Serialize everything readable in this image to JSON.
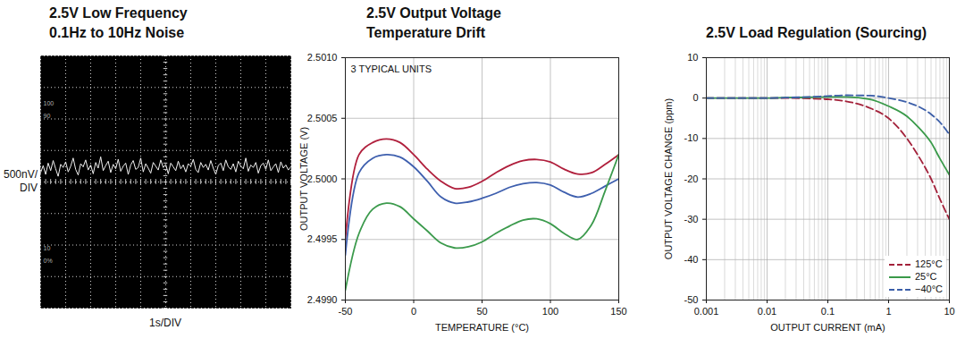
{
  "chart_data": [
    {
      "type": "line",
      "title": "2.5V Low Frequency\n0.1Hz to 10Hz Noise",
      "xlabel": "1s/DIV",
      "ylabel": "500nV/\nDIV",
      "annotations": [
        "100",
        "90",
        "10",
        "0%"
      ],
      "tick_labels": false,
      "grid": true,
      "xlim": [
        0,
        10
      ],
      "ylim": [
        -2000,
        2000
      ],
      "xticks": [
        0,
        1,
        2,
        3,
        4,
        5,
        6,
        7,
        8,
        9,
        10
      ],
      "yticks": [
        -2000,
        -1500,
        -1000,
        -500,
        0,
        500,
        1000,
        1500,
        2000
      ],
      "x": [
        0,
        0.1,
        0.2,
        0.3,
        0.4,
        0.5,
        0.6,
        0.7,
        0.8,
        0.9,
        1,
        1.1,
        1.2,
        1.3,
        1.4,
        1.5,
        1.6,
        1.7,
        1.8,
        1.9,
        2,
        2.1,
        2.2,
        2.3,
        2.4,
        2.5,
        2.6,
        2.7,
        2.8,
        2.9,
        3,
        3.1,
        3.2,
        3.3,
        3.4,
        3.5,
        3.6,
        3.7,
        3.8,
        3.9,
        4,
        4.1,
        4.2,
        4.3,
        4.4,
        4.5,
        4.6,
        4.7,
        4.8,
        4.9,
        5,
        5.1,
        5.2,
        5.3,
        5.4,
        5.5,
        5.6,
        5.7,
        5.8,
        5.9,
        6,
        6.1,
        6.2,
        6.3,
        6.4,
        6.5,
        6.6,
        6.7,
        6.8,
        6.9,
        7,
        7.1,
        7.2,
        7.3,
        7.4,
        7.5,
        7.6,
        7.7,
        7.8,
        7.9,
        8,
        8.1,
        8.2,
        8.3,
        8.4,
        8.5,
        8.6,
        8.7,
        8.8,
        8.9,
        9,
        9.1,
        9.2,
        9.3,
        9.4,
        9.5,
        9.6,
        9.7,
        9.8,
        9.9,
        10
      ],
      "series": [
        {
          "color": "#f0f0f0",
          "values": [
            150,
            260,
            120,
            300,
            180,
            340,
            210,
            90,
            280,
            230,
            320,
            160,
            250,
            380,
            200,
            110,
            290,
            240,
            350,
            190,
            270,
            130,
            310,
            220,
            400,
            180,
            260,
            330,
            150,
            280,
            210,
            360,
            170,
            250,
            300,
            120,
            270,
            340,
            200,
            230,
            380,
            160,
            290,
            220,
            140,
            310,
            250,
            190,
            350,
            230,
            280,
            130,
            300,
            240,
            180,
            330,
            210,
            270,
            160,
            290,
            250,
            360,
            200,
            150,
            310,
            230,
            280,
            190,
            340,
            220,
            120,
            260,
            300,
            180,
            350,
            240,
            200,
            290,
            160,
            330,
            250,
            210,
            380,
            170,
            270,
            230,
            310,
            140,
            260,
            300,
            200,
            350,
            180,
            240,
            290,
            150,
            320,
            220,
            270,
            190,
            240
          ]
        }
      ]
    },
    {
      "type": "line",
      "title": "2.5V Output Voltage\nTemperature Drift",
      "xlabel": "TEMPERATURE (°C)",
      "ylabel": "OUTPUT VOLTAGE (V)",
      "annotations": [
        "3 TYPICAL UNITS"
      ],
      "grid": true,
      "xlim": [
        -50,
        150
      ],
      "ylim": [
        2.499,
        2.501
      ],
      "xticks": [
        -50,
        0,
        50,
        100,
        150
      ],
      "yticks": [
        {
          "value": 2.499,
          "label": "2.4990"
        },
        {
          "value": 2.4995,
          "label": "2.4995"
        },
        {
          "value": 2.5,
          "label": "2.5000"
        },
        {
          "value": 2.5005,
          "label": "2.5005"
        },
        {
          "value": 2.501,
          "label": "2.5010"
        }
      ],
      "x": [
        -50,
        -40,
        -30,
        -20,
        -10,
        0,
        10,
        20,
        30,
        40,
        50,
        60,
        70,
        80,
        90,
        100,
        110,
        120,
        130,
        140,
        150
      ],
      "series": [
        {
          "color": "#b01f3c",
          "line_style": "solid",
          "values": [
            2.4995,
            2.5002,
            2.5003,
            2.50033,
            2.5003,
            2.5002,
            2.50008,
            2.49998,
            2.49992,
            2.49993,
            2.49998,
            2.50005,
            2.50011,
            2.50015,
            2.50016,
            2.50014,
            2.50008,
            2.50004,
            2.50005,
            2.50012,
            2.5002
          ]
        },
        {
          "color": "#3e5fae",
          "line_style": "solid",
          "values": [
            2.49937,
            2.50005,
            2.50017,
            2.5002,
            2.50018,
            2.5001,
            2.49998,
            2.49985,
            2.4998,
            2.49981,
            2.49984,
            2.49988,
            2.49993,
            2.49996,
            2.49997,
            2.49995,
            2.49989,
            2.49985,
            2.49988,
            2.49994,
            2.5
          ]
        },
        {
          "color": "#3b9a4c",
          "line_style": "solid",
          "values": [
            2.49908,
            2.49955,
            2.49975,
            2.4998,
            2.49977,
            2.49967,
            2.49957,
            2.49947,
            2.49943,
            2.49944,
            2.49948,
            2.49955,
            2.49961,
            2.49966,
            2.49967,
            2.49963,
            2.49955,
            2.4995,
            2.49962,
            2.4999,
            2.5002
          ]
        }
      ]
    },
    {
      "type": "line",
      "title": "2.5V Load Regulation (Sourcing)",
      "xlabel": "OUTPUT CURRENT (mA)",
      "ylabel": "OUTPUT VOLTAGE CHANGE (ppm)",
      "log": "x",
      "grid": true,
      "legend": "lower right",
      "xlim": [
        0.001,
        10
      ],
      "ylim": [
        -50,
        10
      ],
      "xticks": [
        0.001,
        0.01,
        0.1,
        1,
        10
      ],
      "yticks": [
        -50,
        -40,
        -30,
        -20,
        -10,
        0,
        10
      ],
      "x": [
        0.001,
        0.002,
        0.005,
        0.01,
        0.02,
        0.05,
        0.1,
        0.2,
        0.5,
        1,
        2,
        3,
        5,
        7,
        10
      ],
      "series": [
        {
          "name": "125°C",
          "color": "#a3213a",
          "line_style": "dashed",
          "values": [
            0,
            0,
            0,
            0,
            0,
            -0.1,
            -0.3,
            -0.8,
            -2.5,
            -5,
            -10,
            -14,
            -20,
            -25,
            -30
          ]
        },
        {
          "name": "25°C",
          "color": "#3a9a4a",
          "line_style": "solid",
          "values": [
            0,
            0,
            0,
            0,
            0.1,
            0.2,
            0.3,
            0.3,
            -0.3,
            -2,
            -4.5,
            -7,
            -11,
            -15,
            -19
          ]
        },
        {
          "name": "−40°C",
          "color": "#3b5ea8",
          "line_style": "dashed",
          "values": [
            0,
            0,
            0,
            0,
            0.1,
            0.3,
            0.5,
            0.7,
            0.6,
            0,
            -1,
            -2,
            -4,
            -6,
            -9
          ]
        }
      ]
    }
  ]
}
